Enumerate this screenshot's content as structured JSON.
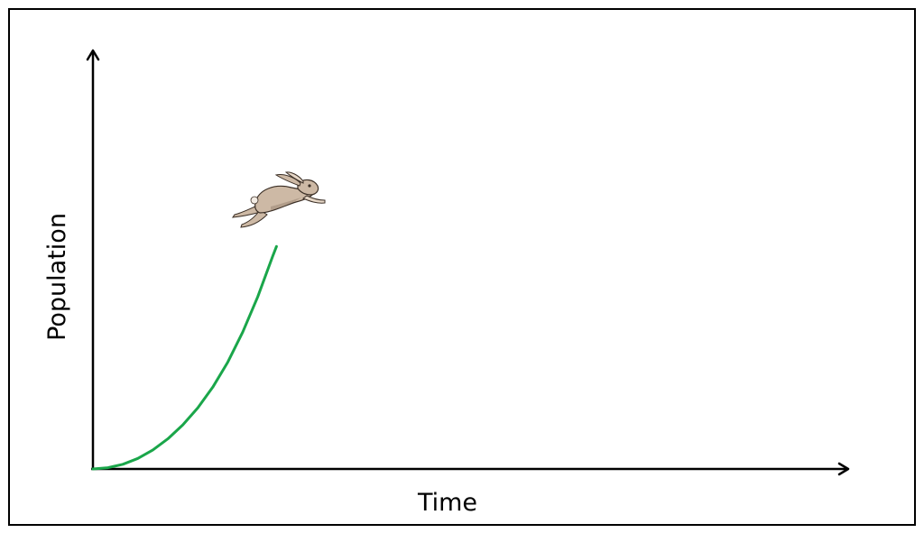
{
  "chart_data": {
    "type": "line",
    "title": "",
    "xlabel": "Time",
    "ylabel": "Population",
    "grid": false,
    "legend": "none",
    "x_ticks": [],
    "y_ticks": [],
    "xlim": [
      0,
      100
    ],
    "ylim": [
      0,
      100
    ],
    "series": [
      {
        "color": "#1aa64a",
        "x": [
          0,
          2,
          4,
          6,
          8,
          10,
          12,
          14,
          16,
          18,
          20,
          22,
          24,
          24.5
        ],
        "y": [
          0,
          0.3,
          1.1,
          2.5,
          4.5,
          7.1,
          10.4,
          14.4,
          19.3,
          25.2,
          32.3,
          40.6,
          50.2,
          52.5
        ]
      }
    ],
    "annotations": [
      {
        "icon": "rabbit-icon",
        "anchor": "curve-end",
        "color": "#cdb9a5"
      }
    ]
  }
}
